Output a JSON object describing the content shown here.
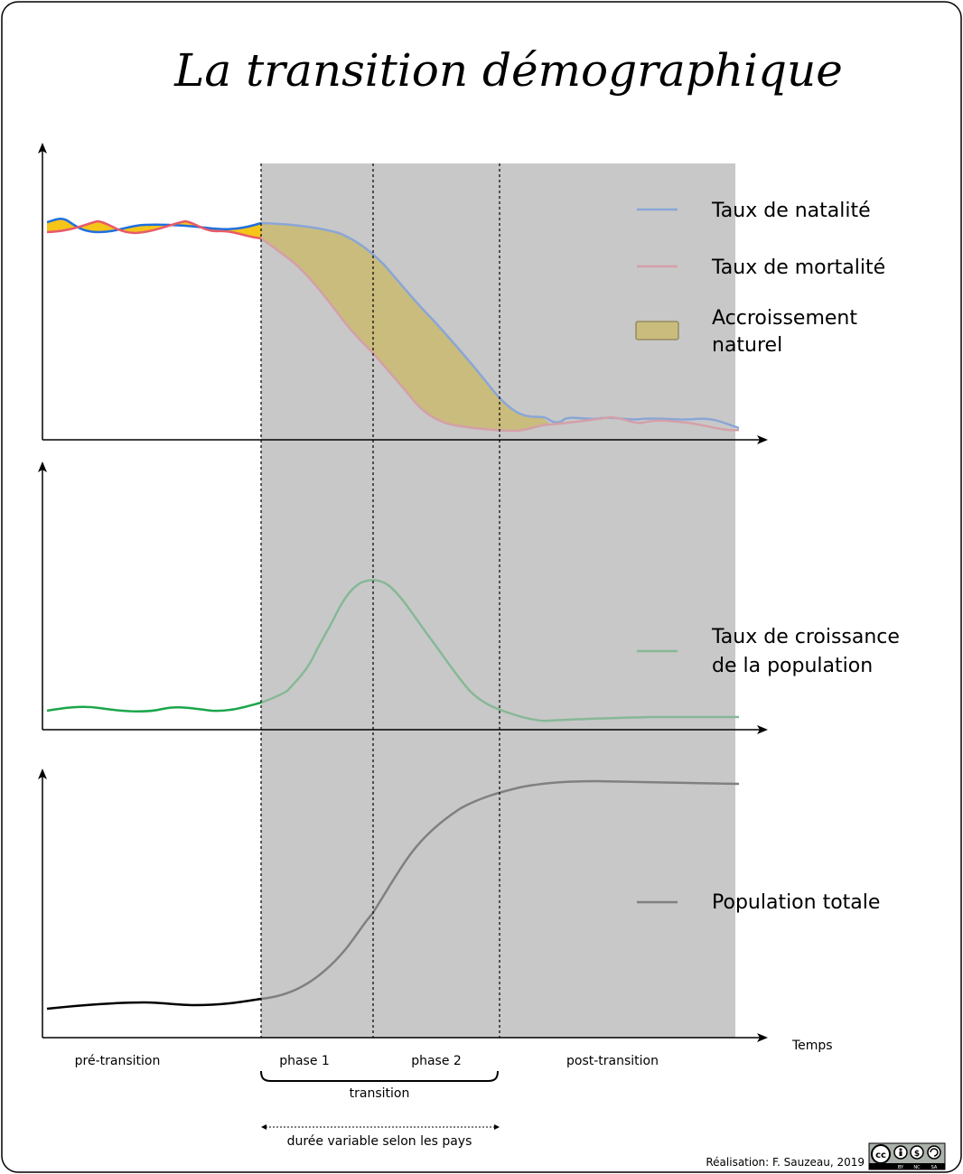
{
  "title": "La transition démographique",
  "legend": {
    "natalite": "Taux de natalité",
    "mortalite": "Taux de mortalité",
    "accroissement_line1": "Accroissement",
    "accroissement_line2": "naturel",
    "croissance_line1": "Taux de croissance",
    "croissance_line2": "de la population",
    "population": "Population totale"
  },
  "axis": {
    "x_label": "Temps"
  },
  "phases": {
    "pre": "pré-transition",
    "phase1": "phase 1",
    "phase2": "phase 2",
    "post": "post-transition",
    "transition": "transition",
    "duration": "durée variable selon les pays"
  },
  "credit": "Réalisation: F. Sauzeau, 2019",
  "license": {
    "cc": "cc",
    "by": "BY",
    "nc": "NC",
    "sa": "SA"
  },
  "colors": {
    "natalite": "#1f6fe0",
    "natalite_faded": "#8aa6d6",
    "mortalite": "#e85a6a",
    "mortalite_faded": "#d4a0a8",
    "accroissement_fill": "#c9bc7d",
    "accroissement_fill_pre": "#f5c518",
    "croissance": "#1aa64a",
    "croissance_faded": "#86b896",
    "population": "#000000",
    "population_faded": "#808080",
    "transition_band": "#c8c8c8"
  }
}
